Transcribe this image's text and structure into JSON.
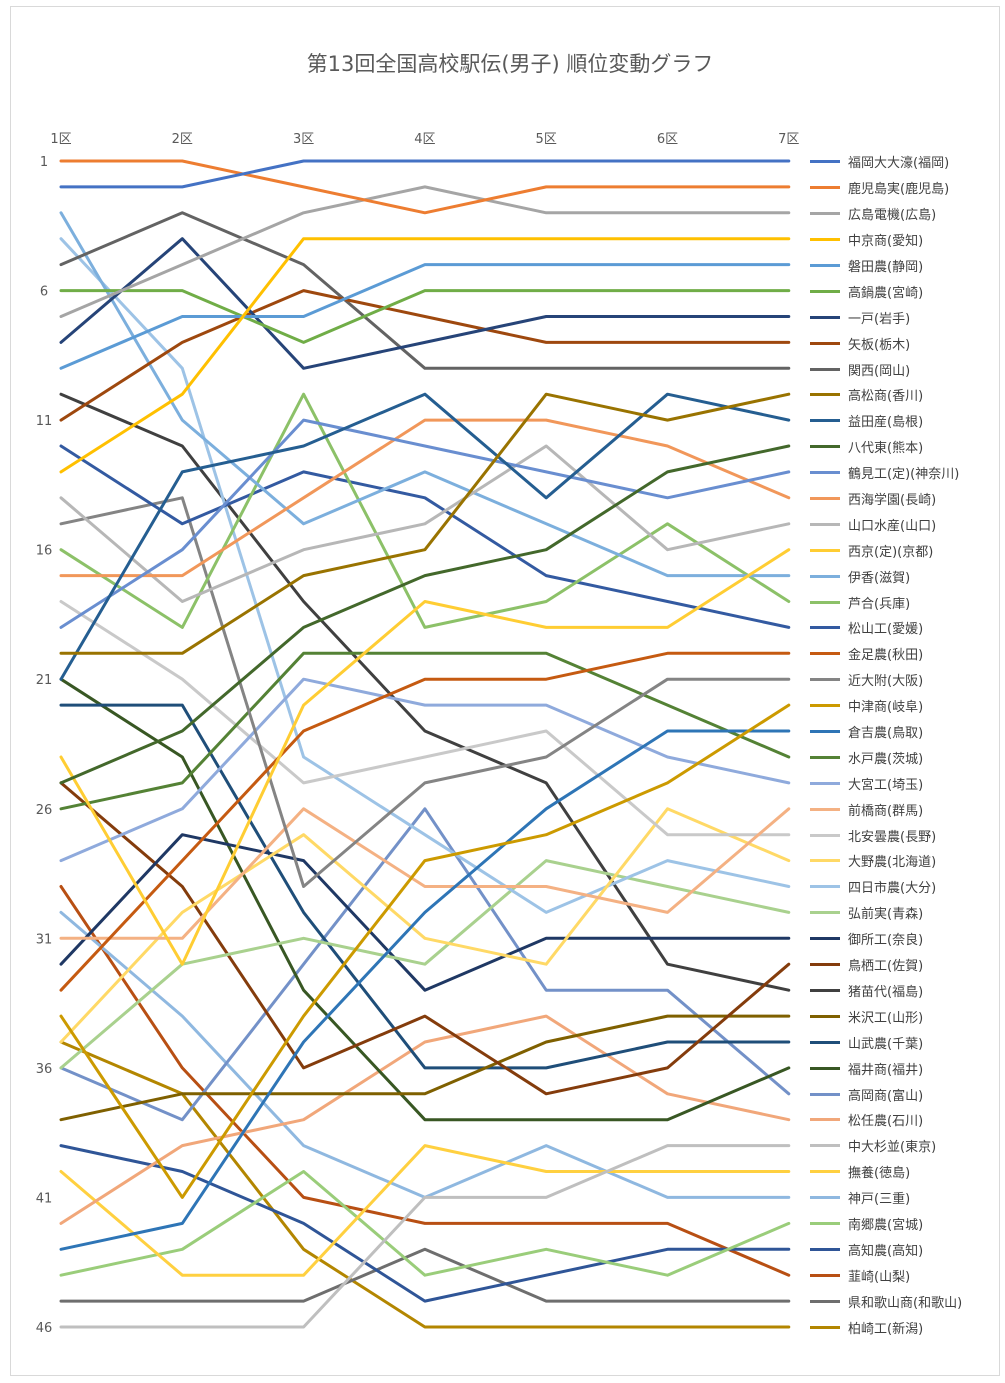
{
  "title": "第13回全国高校駅伝(男子) 順位変動グラフ",
  "chart_data": {
    "type": "line",
    "title": "第13回全国高校駅伝(男子) 順位変動グラフ",
    "categories": [
      "1区",
      "2区",
      "3区",
      "4区",
      "5区",
      "6区",
      "7区"
    ],
    "y_tick_labels": [
      "1",
      "6",
      "11",
      "16",
      "21",
      "26",
      "31",
      "36",
      "41",
      "46"
    ],
    "y_ticks": [
      1,
      6,
      11,
      16,
      21,
      26,
      31,
      36,
      41,
      46
    ],
    "ylim": [
      1,
      46
    ],
    "y_reversed": true,
    "grid": false,
    "legend_position": "right",
    "series": [
      {
        "name": "福岡大大濠(福岡)",
        "color": "#4472C4",
        "values": [
          2,
          2,
          1,
          1,
          1,
          1,
          1
        ]
      },
      {
        "name": "鹿児島実(鹿児島)",
        "color": "#ED7D31",
        "values": [
          1,
          1,
          2,
          3,
          2,
          2,
          2
        ]
      },
      {
        "name": "広島電機(広島)",
        "color": "#A5A5A5",
        "values": [
          7,
          5,
          3,
          2,
          3,
          3,
          3
        ]
      },
      {
        "name": "中京商(愛知)",
        "color": "#FFC000",
        "values": [
          13,
          10,
          4,
          4,
          4,
          4,
          4
        ]
      },
      {
        "name": "磐田農(静岡)",
        "color": "#5B9BD5",
        "values": [
          9,
          7,
          7,
          5,
          5,
          5,
          5
        ]
      },
      {
        "name": "高鍋農(宮崎)",
        "color": "#70AD47",
        "values": [
          6,
          6,
          8,
          6,
          6,
          6,
          6
        ]
      },
      {
        "name": "一戸(岩手)",
        "color": "#264478",
        "values": [
          8,
          4,
          9,
          8,
          7,
          7,
          7
        ]
      },
      {
        "name": "矢板(栃木)",
        "color": "#9E480E",
        "values": [
          11,
          8,
          6,
          7,
          8,
          8,
          8
        ]
      },
      {
        "name": "関西(岡山)",
        "color": "#636363",
        "values": [
          5,
          3,
          5,
          9,
          9,
          9,
          9
        ]
      },
      {
        "name": "高松商(香川)",
        "color": "#997300",
        "values": [
          20,
          20,
          17,
          16,
          10,
          11,
          10
        ]
      },
      {
        "name": "益田産(島根)",
        "color": "#255E91",
        "values": [
          21,
          13,
          12,
          10,
          14,
          10,
          11
        ]
      },
      {
        "name": "八代東(熊本)",
        "color": "#43682B",
        "values": [
          25,
          23,
          19,
          17,
          16,
          13,
          12
        ]
      },
      {
        "name": "鶴見工(定)(神奈川)",
        "color": "#698ED0",
        "values": [
          19,
          16,
          11,
          12,
          13,
          14,
          13
        ]
      },
      {
        "name": "西海学園(長崎)",
        "color": "#F1975A",
        "values": [
          17,
          17,
          14,
          11,
          11,
          12,
          14
        ]
      },
      {
        "name": "山口水産(山口)",
        "color": "#B7B7B7",
        "values": [
          14,
          18,
          16,
          15,
          12,
          16,
          15
        ]
      },
      {
        "name": "西京(定)(京都)",
        "color": "#FFCD33",
        "values": [
          24,
          32,
          22,
          18,
          19,
          19,
          16
        ]
      },
      {
        "name": "伊香(滋賀)",
        "color": "#7CAFDD",
        "values": [
          3,
          11,
          15,
          13,
          15,
          17,
          17
        ]
      },
      {
        "name": "芦合(兵庫)",
        "color": "#8CC168",
        "values": [
          16,
          19,
          10,
          19,
          18,
          15,
          18
        ]
      },
      {
        "name": "松山工(愛媛)",
        "color": "#335AA1",
        "values": [
          12,
          15,
          13,
          14,
          17,
          18,
          19
        ]
      },
      {
        "name": "金足農(秋田)",
        "color": "#C55A11",
        "values": [
          33,
          28,
          23,
          21,
          21,
          20,
          20
        ]
      },
      {
        "name": "近大附(大阪)",
        "color": "#848484",
        "values": [
          15,
          14,
          29,
          25,
          24,
          21,
          21
        ]
      },
      {
        "name": "中津商(岐阜)",
        "color": "#CC9A00",
        "values": [
          34,
          41,
          34,
          28,
          27,
          25,
          22
        ]
      },
      {
        "name": "倉吉農(鳥取)",
        "color": "#2E75B6",
        "values": [
          43,
          42,
          35,
          30,
          26,
          23,
          23
        ]
      },
      {
        "name": "水戸農(茨城)",
        "color": "#548235",
        "values": [
          26,
          25,
          20,
          20,
          20,
          22,
          24
        ]
      },
      {
        "name": "大宮工(埼玉)",
        "color": "#8FAADC",
        "values": [
          28,
          26,
          21,
          22,
          22,
          24,
          25
        ]
      },
      {
        "name": "前橋商(群馬)",
        "color": "#F4B183",
        "values": [
          31,
          31,
          26,
          29,
          29,
          30,
          26
        ]
      },
      {
        "name": "北安曇農(長野)",
        "color": "#C9C9C9",
        "values": [
          18,
          21,
          25,
          24,
          23,
          27,
          27
        ]
      },
      {
        "name": "大野農(北海道)",
        "color": "#FFD966",
        "values": [
          35,
          30,
          27,
          31,
          32,
          26,
          28
        ]
      },
      {
        "name": "四日市農(大分)",
        "color": "#9DC3E6",
        "values": [
          4,
          9,
          24,
          27,
          30,
          28,
          29
        ]
      },
      {
        "name": "弘前実(青森)",
        "color": "#A9D18E",
        "values": [
          36,
          32,
          31,
          32,
          28,
          29,
          30
        ]
      },
      {
        "name": "御所工(奈良)",
        "color": "#1F3864",
        "values": [
          32,
          27,
          28,
          33,
          31,
          31,
          31
        ]
      },
      {
        "name": "鳥栖工(佐賀)",
        "color": "#843C0C",
        "values": [
          25,
          29,
          36,
          34,
          37,
          36,
          32
        ]
      },
      {
        "name": "猪苗代(福島)",
        "color": "#404040",
        "values": [
          10,
          12,
          18,
          23,
          25,
          32,
          33
        ]
      },
      {
        "name": "米沢工(山形)",
        "color": "#7F6000",
        "values": [
          38,
          37,
          37,
          37,
          35,
          34,
          34
        ]
      },
      {
        "name": "山武農(千葉)",
        "color": "#1F4E79",
        "values": [
          22,
          22,
          30,
          36,
          36,
          35,
          35
        ]
      },
      {
        "name": "福井商(福井)",
        "color": "#385723",
        "values": [
          21,
          24,
          33,
          38,
          38,
          38,
          36
        ]
      },
      {
        "name": "高岡商(富山)",
        "color": "#7391C8",
        "values": [
          36,
          38,
          32,
          26,
          33,
          33,
          37
        ]
      },
      {
        "name": "松任農(石川)",
        "color": "#F1A77A",
        "values": [
          42,
          39,
          38,
          35,
          34,
          37,
          38
        ]
      },
      {
        "name": "中大杉並(東京)",
        "color": "#BFBFBF",
        "values": [
          46,
          46,
          46,
          41,
          41,
          39,
          39
        ]
      },
      {
        "name": "撫養(徳島)",
        "color": "#FFD040",
        "values": [
          40,
          44,
          44,
          39,
          40,
          40,
          40
        ]
      },
      {
        "name": "神戸(三重)",
        "color": "#8FB8E0",
        "values": [
          30,
          34,
          39,
          41,
          39,
          41,
          41
        ]
      },
      {
        "name": "南郷農(宮城)",
        "color": "#9ACD7A",
        "values": [
          44,
          43,
          40,
          44,
          43,
          44,
          42
        ]
      },
      {
        "name": "高知農(高知)",
        "color": "#2F5597",
        "values": [
          39,
          40,
          42,
          45,
          44,
          43,
          43
        ]
      },
      {
        "name": "韮崎(山梨)",
        "color": "#B84F13",
        "values": [
          29,
          36,
          41,
          42,
          42,
          42,
          44
        ]
      },
      {
        "name": "県和歌山商(和歌山)",
        "color": "#6E6E6E",
        "values": [
          45,
          45,
          45,
          43,
          45,
          45,
          45
        ]
      },
      {
        "name": "柏崎工(新潟)",
        "color": "#B38600",
        "values": [
          35,
          37,
          43,
          46,
          46,
          46,
          46
        ]
      }
    ]
  }
}
